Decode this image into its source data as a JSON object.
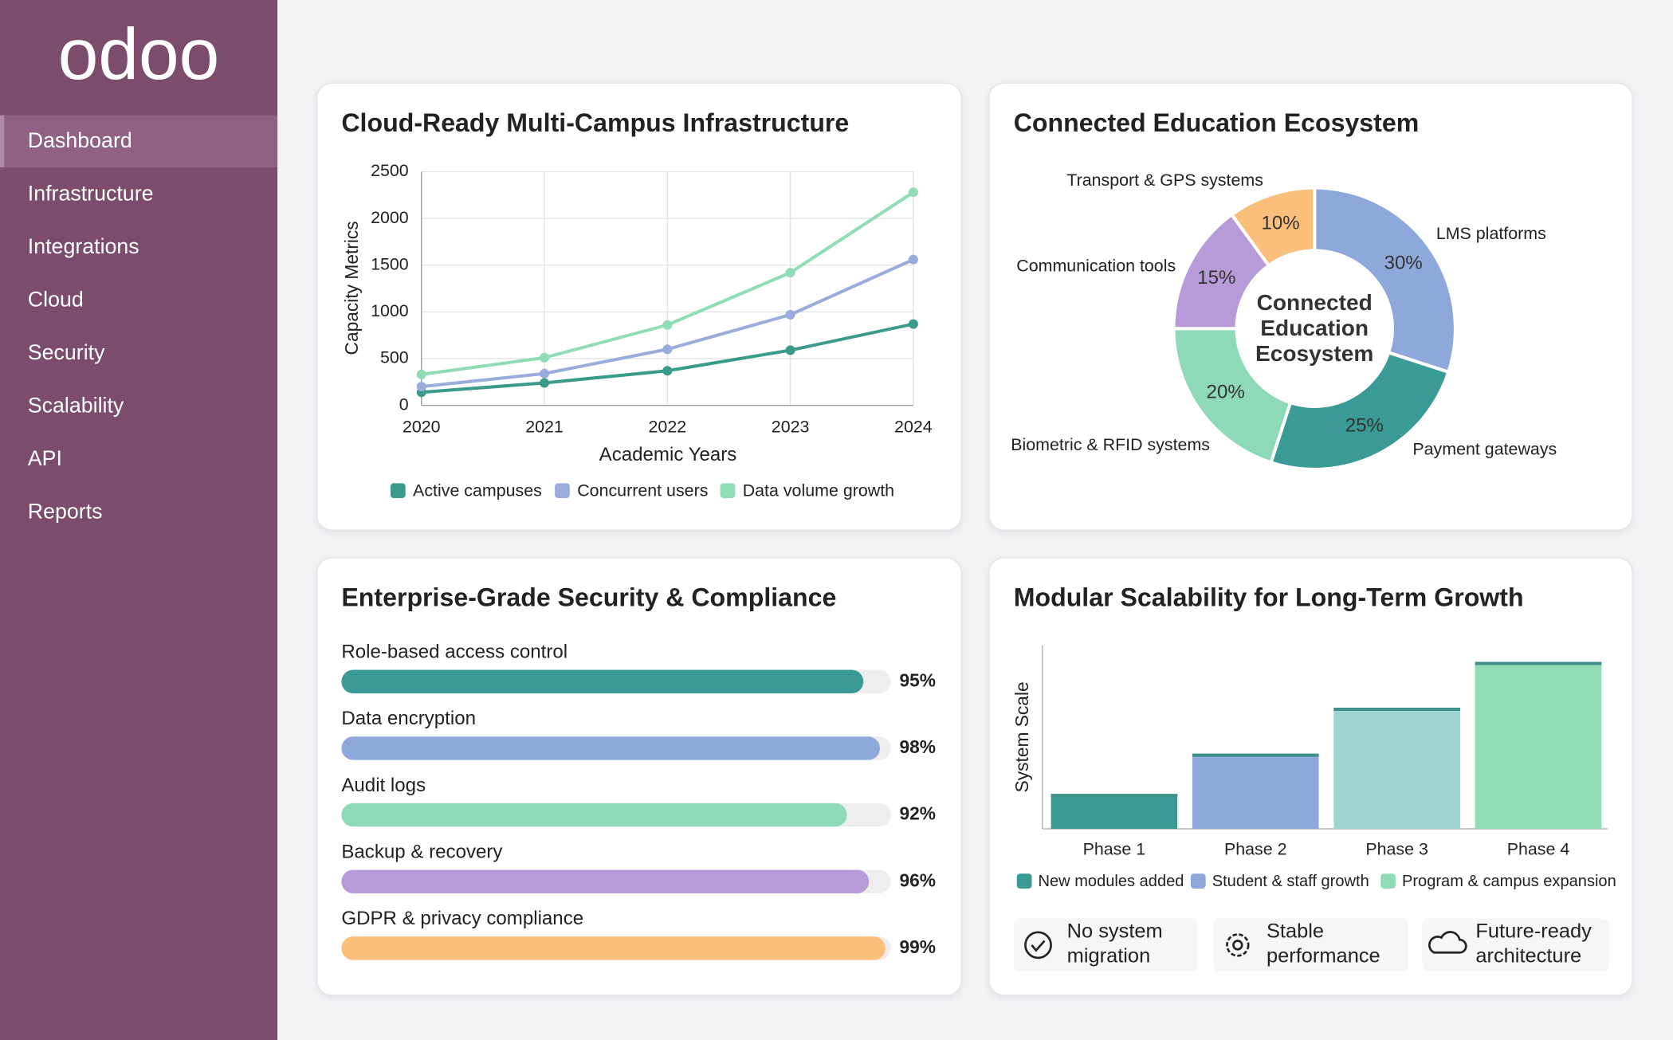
{
  "sidebar": {
    "logo": "odoo",
    "items": [
      "Dashboard",
      "Infrastructure",
      "Integrations",
      "Cloud",
      "Security",
      "Scalability",
      "API",
      "Reports"
    ],
    "active": 0
  },
  "chart_data": [
    {
      "type": "line",
      "title": "Cloud-Ready Multi-Campus Infrastructure",
      "x_label": "Academic Years",
      "y_label": "Capacity Metrics",
      "x": [
        2020,
        2021,
        2022,
        2023,
        2024
      ],
      "xlim": [
        2020,
        2024
      ],
      "xticks": [
        2020,
        2021,
        2022,
        2023,
        2024
      ],
      "ylim": [
        0,
        2500
      ],
      "yticks": [
        0,
        500,
        1000,
        1500,
        2000,
        2500
      ],
      "grid": true,
      "series": [
        {
          "name": "Active campuses",
          "color": "#3a9a8c",
          "values": [
            140,
            240,
            370,
            590,
            870
          ]
        },
        {
          "name": "Concurrent users",
          "color": "#9aacdc",
          "values": [
            200,
            340,
            600,
            970,
            1560
          ]
        },
        {
          "name": "Data volume growth",
          "color": "#8fdcb5",
          "values": [
            330,
            510,
            860,
            1420,
            2280
          ]
        }
      ]
    },
    {
      "type": "pie",
      "title": "Connected Education Ecosystem",
      "center_label": [
        "Connected",
        "Education",
        "Ecosystem"
      ],
      "categories": [
        "LMS platforms",
        "Payment gateways",
        "Biometric & RFID systems",
        "Communication tools",
        "Transport & GPS systems"
      ],
      "values": [
        30,
        25,
        20,
        15,
        10
      ],
      "value_labels": [
        "30%",
        "25%",
        "20%",
        "15%",
        "10%"
      ],
      "colors": [
        "#8fa8dc",
        "#3a9a96",
        "#8dd9b8",
        "#b79bd9",
        "#fbbf7c"
      ]
    },
    {
      "type": "bar",
      "orientation": "horizontal",
      "title": "Enterprise-Grade Security & Compliance",
      "categories": [
        "Role-based access control",
        "Data encryption",
        "Audit logs",
        "Backup & recovery",
        "GDPR & privacy compliance"
      ],
      "values": [
        95,
        98,
        92,
        96,
        99
      ],
      "value_labels": [
        "95%",
        "98%",
        "92%",
        "96%",
        "99%"
      ],
      "xlim": [
        0,
        100
      ],
      "colors": [
        "#3a9a96",
        "#8fa8dc",
        "#8dd9b8",
        "#b79bd9",
        "#fbbf7c"
      ]
    },
    {
      "type": "bar",
      "orientation": "vertical",
      "title": "Modular Scalability for Long-Term Growth",
      "y_label": "System Scale",
      "categories": [
        "Phase 1",
        "Phase 2",
        "Phase 3",
        "Phase 4"
      ],
      "values": [
        19,
        41,
        66,
        91
      ],
      "ylim": [
        0,
        100
      ],
      "colors": [
        "#3a9a96",
        "#8fa8dc",
        "#9dd6d0",
        "#8fdcb5"
      ],
      "legend": [
        {
          "name": "New modules added",
          "color": "#3a9a96"
        },
        {
          "name": "Student & staff growth",
          "color": "#8fa8dc"
        },
        {
          "name": "Program & campus expansion",
          "color": "#8fdcb5"
        }
      ],
      "features": [
        [
          "No system",
          "migration"
        ],
        [
          "Stable",
          "performance"
        ],
        [
          "Future-ready",
          "architecture"
        ]
      ]
    }
  ]
}
